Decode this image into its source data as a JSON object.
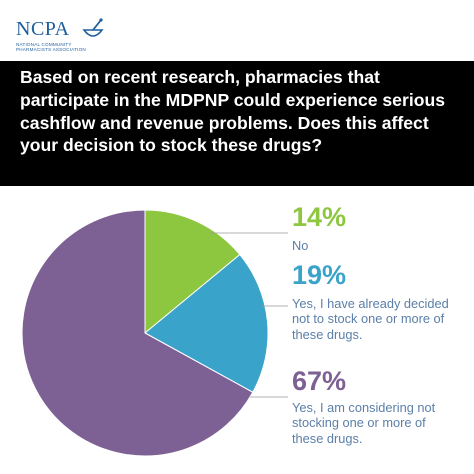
{
  "logo": {
    "wordmark": "NCPA",
    "subtitle_line1": "NATIONAL COMMUNITY",
    "subtitle_line2": "PHARMACISTS ASSOCIATION",
    "icon": "mortar-pestle-icon",
    "color": "#1f5e9e"
  },
  "chart_data": {
    "type": "pie",
    "title": "Based on recent research, pharmacies that participate in the MDPNP could experience serious cashflow and revenue problems. Does this affect your decision to stock these drugs?",
    "slices": [
      {
        "percent_label": "14%",
        "value": 14,
        "label": "No",
        "color": "#8dc63f"
      },
      {
        "percent_label": "19%",
        "value": 19,
        "label": "Yes, I have already decided not to stock one or more of these drugs.",
        "color": "#3aa3c9"
      },
      {
        "percent_label": "67%",
        "value": 67,
        "label": "Yes, I am considering not stocking one or more of these drugs.",
        "color": "#7d6094"
      }
    ],
    "label_color": "#5b7fa8",
    "leader_line_color": "#9a9a9a"
  }
}
